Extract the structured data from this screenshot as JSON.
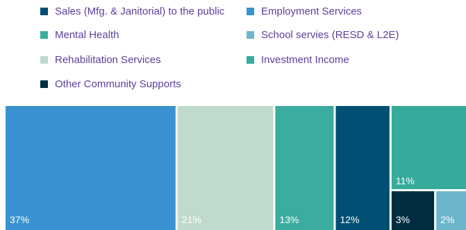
{
  "chart_data": {
    "type": "treemap",
    "title": "",
    "legend_position": "top",
    "series": [
      {
        "name": "Sales (Mfg. & Janitorial) to the public",
        "value": 12,
        "label": "12%",
        "color": "#005073"
      },
      {
        "name": "Employment Services",
        "value": 37,
        "label": "37%",
        "color": "#3a93d0"
      },
      {
        "name": "Mental Health",
        "value": 13,
        "label": "13%",
        "color": "#3aada0"
      },
      {
        "name": "School servies (RESD & L2E)",
        "value": 2,
        "label": "2%",
        "color": "#6cb6cc"
      },
      {
        "name": "Rehabilitation Services",
        "value": 21,
        "label": "21%",
        "color": "#c0dace"
      },
      {
        "name": "Investment Income",
        "value": 11,
        "label": "11%",
        "color": "#36ab9c"
      },
      {
        "name": "Other Community Supports",
        "value": 3,
        "label": "3%",
        "color": "#022d41"
      }
    ]
  }
}
